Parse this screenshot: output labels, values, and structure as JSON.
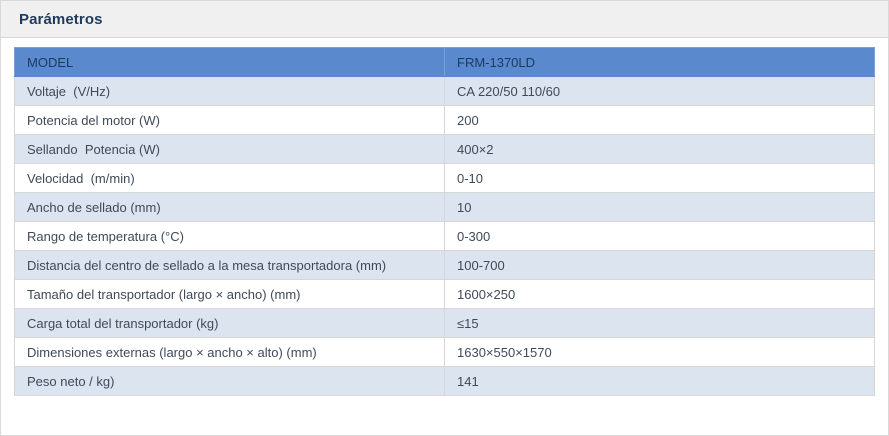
{
  "page": {
    "title": "Parámetros"
  },
  "table": {
    "header": {
      "model_label": "MODEL",
      "model_value": "FRM-1370LD"
    },
    "rows": [
      {
        "name": "Voltaje  (V/Hz)",
        "value": "CA 220/50 110/60"
      },
      {
        "name": "Potencia del motor (W)",
        "value": "200"
      },
      {
        "name": "Sellando  Potencia (W)",
        "value": "400×2"
      },
      {
        "name": "Velocidad  (m/min)",
        "value": "0-10"
      },
      {
        "name": "Ancho de sellado (mm)",
        "value": "10"
      },
      {
        "name": "Rango de temperatura (°C)",
        "value": "0-300"
      },
      {
        "name": "Distancia del centro de sellado a la mesa transportadora (mm)",
        "value": "100-700"
      },
      {
        "name": "Tamaño del transportador (largo × ancho) (mm)",
        "value": "1600×250"
      },
      {
        "name": "Carga total del transportador (kg)",
        "value": "≤15"
      },
      {
        "name": "Dimensiones externas (largo × ancho × alto) (mm)",
        "value": "1630×550×1570"
      },
      {
        "name": "Peso neto / kg)",
        "value": "141"
      }
    ]
  },
  "colors": {
    "header_bg": "#5b89ce",
    "header_text": "#1c3a60",
    "alt_row_bg": "#dce4f0",
    "row_text": "#3f4a58",
    "panel_heading_bg": "#f0f0f0",
    "title_text": "#1f3a5c",
    "border": "#d6d6d6"
  }
}
